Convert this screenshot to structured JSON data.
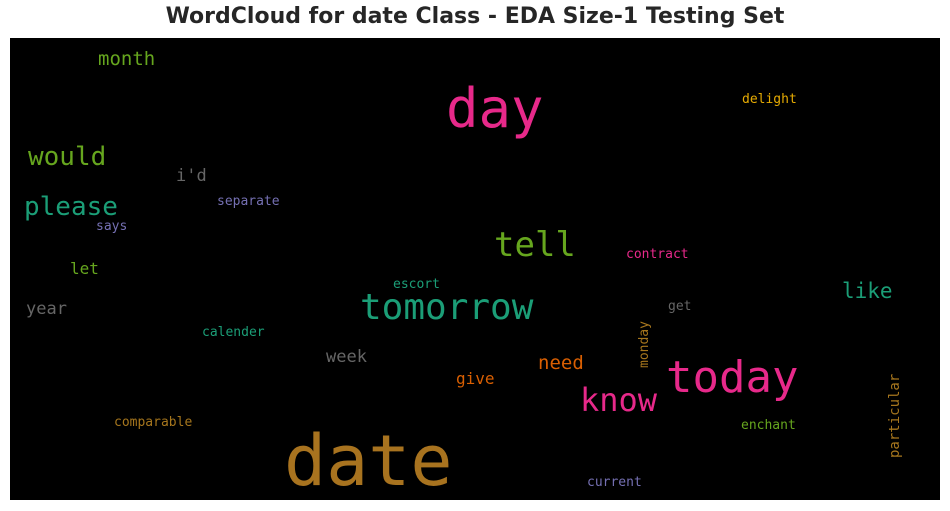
{
  "title": "WordCloud for date Class - EDA Size-1 Testing Set",
  "chart_data": {
    "type": "wordcloud",
    "background": "#000000",
    "words": [
      {
        "text": "date",
        "color": "#a8731f"
      },
      {
        "text": "day",
        "color": "#e7298a"
      },
      {
        "text": "tomorrow",
        "color": "#1b9e77"
      },
      {
        "text": "today",
        "color": "#e7298a"
      },
      {
        "text": "tell",
        "color": "#66a61e"
      },
      {
        "text": "know",
        "color": "#e7298a"
      },
      {
        "text": "please",
        "color": "#1b9e77"
      },
      {
        "text": "would",
        "color": "#66a61e"
      },
      {
        "text": "month",
        "color": "#66a61e"
      },
      {
        "text": "like",
        "color": "#1b9e77"
      },
      {
        "text": "need",
        "color": "#d95f02"
      },
      {
        "text": "give",
        "color": "#d95f02"
      },
      {
        "text": "year",
        "color": "#666666"
      },
      {
        "text": "week",
        "color": "#666666"
      },
      {
        "text": "let",
        "color": "#66a61e"
      },
      {
        "text": "i'd",
        "color": "#666666"
      },
      {
        "text": "particular",
        "color": "#a6761d"
      },
      {
        "text": "delight",
        "color": "#e6ab02"
      },
      {
        "text": "contract",
        "color": "#e7298a"
      },
      {
        "text": "separate",
        "color": "#7570b3"
      },
      {
        "text": "says",
        "color": "#7570b3"
      },
      {
        "text": "escort",
        "color": "#1b9e77"
      },
      {
        "text": "get",
        "color": "#666666"
      },
      {
        "text": "calender",
        "color": "#1b9e77"
      },
      {
        "text": "monday",
        "color": "#a6761d"
      },
      {
        "text": "comparable",
        "color": "#a6761d"
      },
      {
        "text": "enchant",
        "color": "#66a61e"
      },
      {
        "text": "current",
        "color": "#7570b3"
      }
    ]
  }
}
